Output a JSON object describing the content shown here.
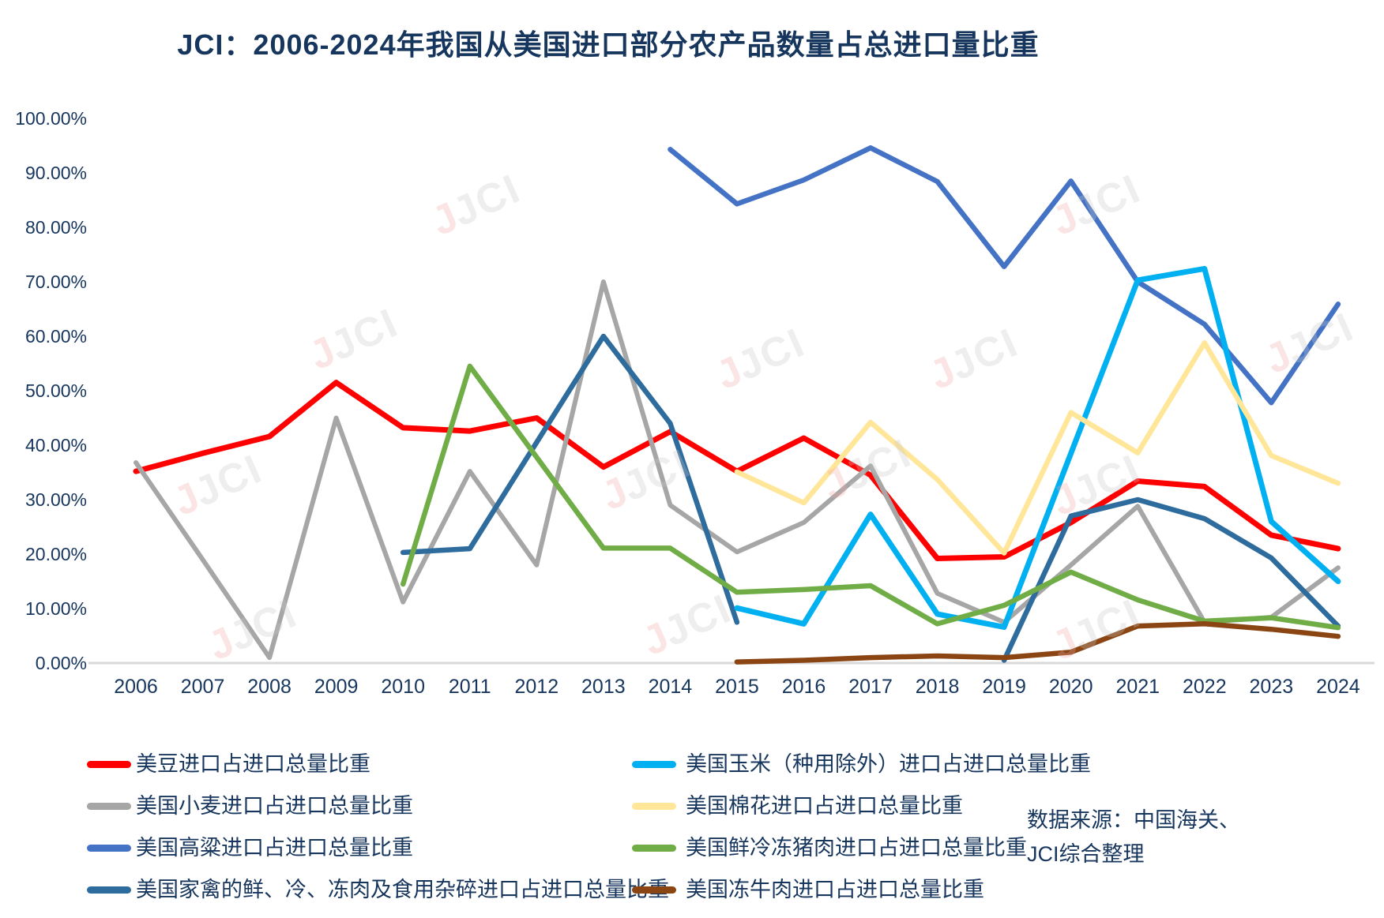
{
  "title": "JCI：2006-2024年我国从美国进口部分农产品数量占总进口量比重",
  "source_note": {
    "line1": "数据来源：中国海关、",
    "line2": "JCI综合整理"
  },
  "watermark": {
    "j": "J",
    "text": "JCI"
  },
  "colors": {
    "title_text": "#17365D",
    "axis_line": "#D9D9D9",
    "tick_text": "#17365D"
  },
  "chart_data": {
    "type": "line",
    "title": "JCI：2006-2024年我国从美国进口部分农产品数量占总进口量比重",
    "xlabel": "",
    "ylabel": "",
    "ylim": [
      0,
      100
    ],
    "grid": false,
    "legend_position": "bottom",
    "yticks": [
      "0.00%",
      "10.00%",
      "20.00%",
      "30.00%",
      "40.00%",
      "50.00%",
      "60.00%",
      "70.00%",
      "80.00%",
      "90.00%",
      "100.00%"
    ],
    "categories": [
      "2006",
      "2007",
      "2008",
      "2009",
      "2010",
      "2011",
      "2012",
      "2013",
      "2014",
      "2015",
      "2016",
      "2017",
      "2018",
      "2019",
      "2020",
      "2021",
      "2022",
      "2023",
      "2024"
    ],
    "series": [
      {
        "id": "us-soybean",
        "name": "美豆进口占进口总量比重",
        "color": "#FF0000",
        "stroke_width": 7,
        "values": [
          35.2,
          38.5,
          41.6,
          51.5,
          43.2,
          42.6,
          45.0,
          36.0,
          42.5,
          35.2,
          41.3,
          34.5,
          19.2,
          19.5,
          25.8,
          33.4,
          32.4,
          23.5,
          21.0
        ]
      },
      {
        "id": "us-wheat",
        "name": "美国小麦进口占进口总量比重",
        "color": "#A6A6A6",
        "stroke_width": 6,
        "values": [
          36.8,
          19.0,
          1.0,
          45.0,
          11.2,
          35.2,
          18.0,
          70.0,
          29.0,
          20.4,
          25.8,
          36.2,
          12.8,
          7.5,
          18.0,
          28.8,
          7.5,
          8.4,
          17.5
        ]
      },
      {
        "id": "us-sorghum",
        "name": "美国高粱进口占进口总量比重",
        "color": "#4472C4",
        "stroke_width": 6.5,
        "values": [
          null,
          null,
          null,
          null,
          null,
          null,
          null,
          null,
          94.3,
          84.3,
          88.7,
          94.6,
          88.4,
          72.8,
          88.5,
          70.0,
          62.2,
          47.8,
          65.9
        ]
      },
      {
        "id": "us-poultry",
        "name": "美国家禽的鲜、冷、冻肉及食用杂碎进口占进口总量比重",
        "color": "#2E6C9E",
        "stroke_width": 6.5,
        "values": [
          null,
          null,
          null,
          null,
          20.3,
          21.0,
          40.5,
          60.0,
          44.0,
          7.5,
          null,
          null,
          null,
          0.5,
          27.0,
          30.0,
          26.5,
          19.3,
          6.8
        ]
      },
      {
        "id": "us-corn",
        "name": "美国玉米（种用除外）进口占进口总量比重",
        "color": "#00B0F0",
        "stroke_width": 7,
        "values": [
          null,
          null,
          null,
          null,
          null,
          null,
          null,
          null,
          null,
          10.1,
          7.2,
          27.3,
          9.0,
          6.6,
          38.5,
          70.3,
          72.4,
          26.0,
          15.0
        ]
      },
      {
        "id": "us-cotton",
        "name": "美国棉花进口占进口总量比重",
        "color": "#FFE699",
        "stroke_width": 6.5,
        "values": [
          null,
          null,
          null,
          null,
          null,
          null,
          null,
          null,
          null,
          35.1,
          29.4,
          44.2,
          33.7,
          20.2,
          46.0,
          38.6,
          58.8,
          38.1,
          33.0
        ]
      },
      {
        "id": "us-pork",
        "name": "美国鲜冷冻猪肉进口占进口总量比重",
        "color": "#70AD47",
        "stroke_width": 6.5,
        "values": [
          null,
          null,
          null,
          null,
          14.5,
          54.5,
          37.8,
          21.1,
          21.1,
          13.0,
          13.5,
          14.2,
          7.2,
          10.6,
          16.7,
          11.6,
          7.7,
          8.3,
          6.5
        ]
      },
      {
        "id": "us-beef",
        "name": "美国冻牛肉进口占进口总量比重",
        "color": "#8B4513",
        "stroke_width": 6.5,
        "values": [
          null,
          null,
          null,
          null,
          null,
          null,
          null,
          null,
          null,
          0.2,
          0.5,
          1.0,
          1.3,
          1.0,
          2.0,
          6.8,
          7.2,
          6.2,
          4.9
        ]
      }
    ]
  },
  "legend": {
    "columns": [
      {
        "series_indexes": [
          0,
          1,
          2,
          3
        ]
      },
      {
        "series_indexes": [
          4,
          5,
          6,
          7
        ]
      }
    ]
  }
}
